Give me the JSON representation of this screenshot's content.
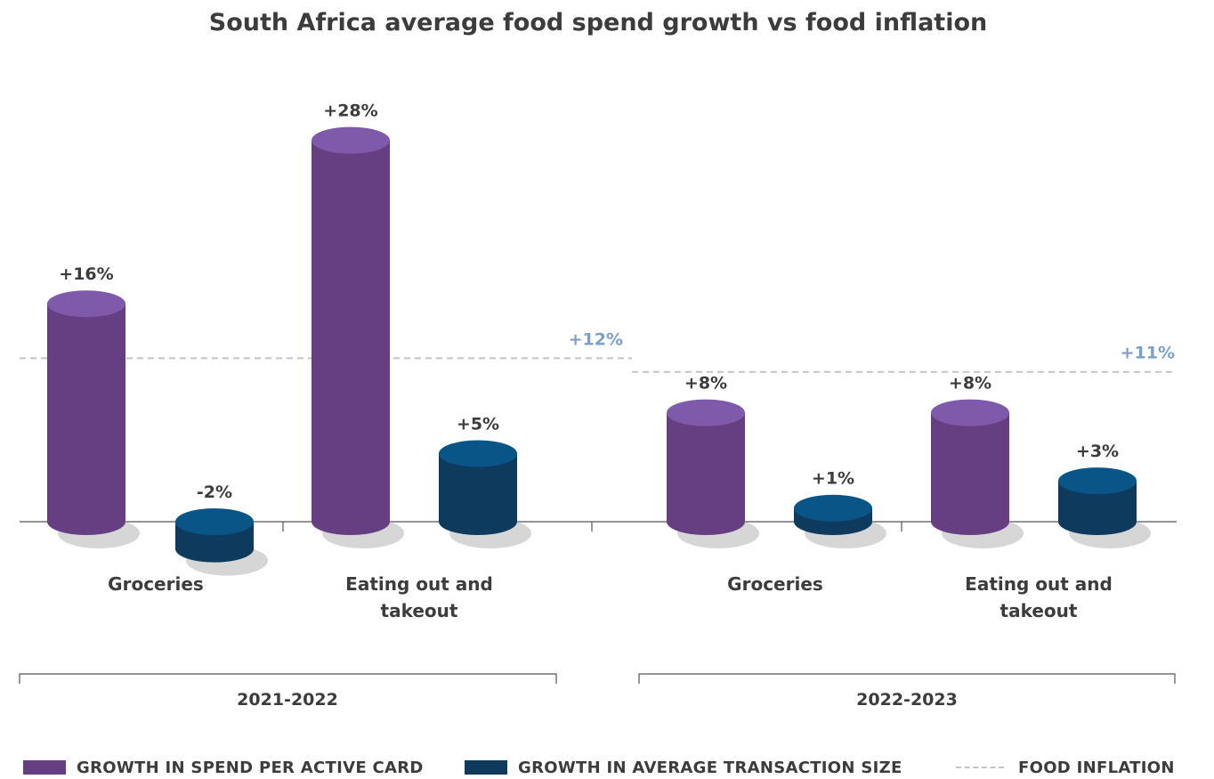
{
  "chart_data": {
    "type": "bar",
    "title": "South Africa average food spend growth vs food inflation",
    "periods": [
      {
        "name": "2021-2022",
        "food_inflation": 12,
        "food_inflation_label": "+12%",
        "categories": [
          {
            "label_lines": [
              "Groceries"
            ],
            "spend": 16,
            "spend_label": "+16%",
            "ats": -2,
            "ats_label": "-2%"
          },
          {
            "label_lines": [
              "Eating out and",
              "takeout"
            ],
            "spend": 28,
            "spend_label": "+28%",
            "ats": 5,
            "ats_label": "+5%"
          }
        ]
      },
      {
        "name": "2022-2023",
        "food_inflation": 11,
        "food_inflation_label": "+11%",
        "categories": [
          {
            "label_lines": [
              "Groceries"
            ],
            "spend": 8,
            "spend_label": "+8%",
            "ats": 1,
            "ats_label": "+1%"
          },
          {
            "label_lines": [
              "Eating out and",
              "takeout"
            ],
            "spend": 8,
            "spend_label": "+8%",
            "ats": 3,
            "ats_label": "+3%"
          }
        ]
      }
    ],
    "legend": {
      "spend": "GROWTH IN SPEND PER ACTIVE CARD",
      "ats": "GROWTH IN AVERAGE TRANSACTION SIZE",
      "inflation": "FOOD INFLATION"
    },
    "colors": {
      "spend": "#663f82",
      "spend_top": "#7f5aab",
      "ats": "#0e3a5e",
      "ats_top": "#0a5588",
      "inflation_line": "#c4c4c4",
      "inflation_label": "#7aa0c8",
      "text": "#3c3c3c"
    }
  }
}
